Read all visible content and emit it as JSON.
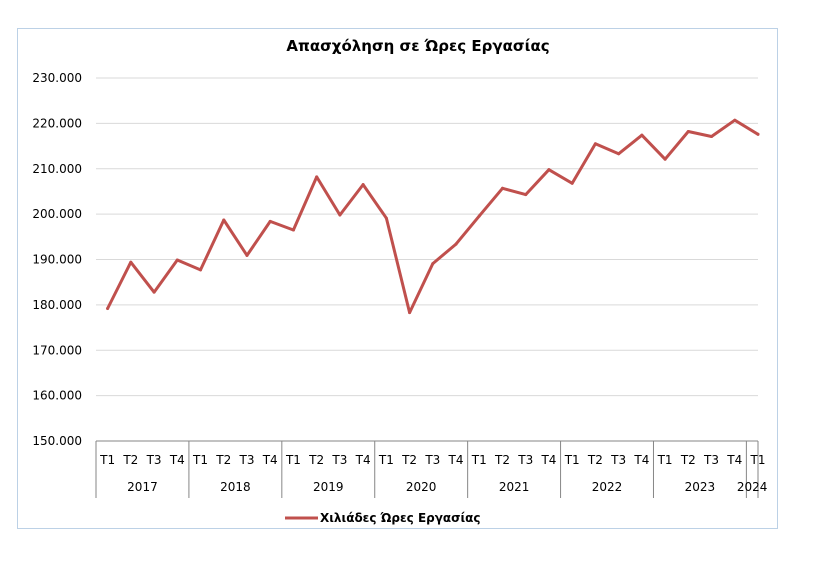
{
  "chart_data": {
    "type": "line",
    "title": "Απασχόληση σε Ώρες Εργασίας",
    "xlabel": "",
    "ylabel": "",
    "ylim": [
      150000,
      230000
    ],
    "y_ticks": [
      "150.000",
      "160.000",
      "170.000",
      "180.000",
      "190.000",
      "200.000",
      "210.000",
      "220.000",
      "230.000"
    ],
    "y_tick_values": [
      150000,
      160000,
      170000,
      180000,
      190000,
      200000,
      210000,
      220000,
      230000
    ],
    "grid": true,
    "legend_position": "bottom",
    "categories": [
      "Τ1",
      "Τ2",
      "Τ3",
      "Τ4",
      "Τ1",
      "Τ2",
      "Τ3",
      "Τ4",
      "Τ1",
      "Τ2",
      "Τ3",
      "Τ4",
      "Τ1",
      "Τ2",
      "Τ3",
      "Τ4",
      "Τ1",
      "Τ2",
      "Τ3",
      "Τ4",
      "Τ1",
      "Τ2",
      "Τ3",
      "Τ4",
      "Τ1",
      "Τ2",
      "Τ3",
      "Τ4",
      "Τ1"
    ],
    "years": [
      {
        "label": "2017",
        "quarters": 4
      },
      {
        "label": "2018",
        "quarters": 4
      },
      {
        "label": "2019",
        "quarters": 4
      },
      {
        "label": "2020",
        "quarters": 4
      },
      {
        "label": "2021",
        "quarters": 4
      },
      {
        "label": "2022",
        "quarters": 4
      },
      {
        "label": "2023",
        "quarters": 4
      },
      {
        "label": "2024",
        "quarters": 1
      }
    ],
    "series": [
      {
        "name": "Χιλιάδες Ώρες Εργασίας",
        "color": "#c0504d",
        "values": [
          179200,
          189400,
          182800,
          189900,
          187700,
          198700,
          190900,
          198400,
          196500,
          208200,
          199800,
          206500,
          199100,
          178300,
          189100,
          193400,
          199600,
          205700,
          204300,
          209800,
          206800,
          215500,
          213300,
          217400,
          212100,
          218200,
          217100,
          220700,
          217600
        ]
      }
    ]
  }
}
